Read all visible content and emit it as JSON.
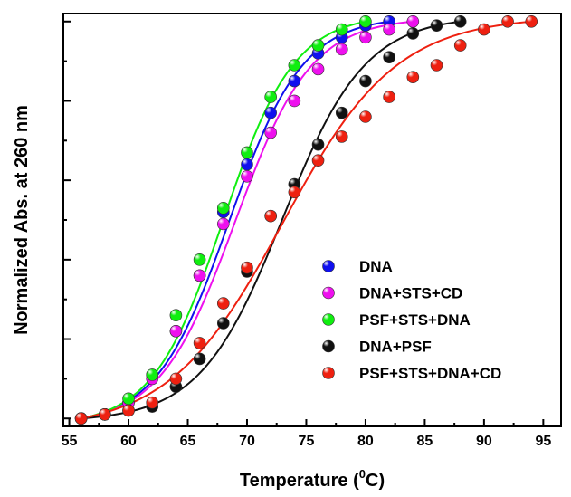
{
  "chart_data": {
    "type": "scatter",
    "title": "",
    "xlabel": "Temperature (",
    "xlabel_sup": "0",
    "xlabel_suffix": "C)",
    "ylabel": "Normalized Abs. at 260 nm",
    "xlim": [
      54.5,
      96.5
    ],
    "ylim": [
      -0.02,
      1.02
    ],
    "xticks": [
      "55",
      "60",
      "65",
      "70",
      "75",
      "80",
      "85",
      "90",
      "95"
    ],
    "yticks_shown_labels": false,
    "grid": false,
    "legend_position": "lower-right",
    "series": [
      {
        "name": "DNA",
        "color": "#1010ee",
        "x": [
          56,
          58,
          60,
          62,
          64,
          66,
          68,
          70,
          72,
          74,
          76,
          78,
          80,
          82
        ],
        "y": [
          0.0,
          0.01,
          0.04,
          0.11,
          0.22,
          0.36,
          0.52,
          0.64,
          0.77,
          0.85,
          0.92,
          0.96,
          0.99,
          1.0
        ],
        "fit": {
          "x0": 68.5,
          "k": 3.1
        }
      },
      {
        "name": "DNA+STS+CD",
        "color": "#ee10ee",
        "x": [
          56,
          58,
          60,
          62,
          64,
          66,
          68,
          70,
          72,
          74,
          76,
          78,
          80,
          82,
          84
        ],
        "y": [
          0.0,
          0.01,
          0.04,
          0.1,
          0.22,
          0.36,
          0.49,
          0.61,
          0.72,
          0.8,
          0.88,
          0.93,
          0.96,
          0.98,
          1.0
        ],
        "fit": {
          "x0": 69.0,
          "k": 3.2
        }
      },
      {
        "name": "PSF+STS+DNA",
        "color": "#10ee10",
        "x": [
          56,
          58,
          60,
          62,
          64,
          66,
          68,
          70,
          72,
          74,
          76,
          78,
          80
        ],
        "y": [
          0.0,
          0.01,
          0.05,
          0.11,
          0.26,
          0.4,
          0.53,
          0.67,
          0.81,
          0.89,
          0.94,
          0.98,
          1.0
        ],
        "fit": {
          "x0": 68.0,
          "k": 3.0
        }
      },
      {
        "name": "DNA+PSF",
        "color": "#111111",
        "x": [
          56,
          58,
          60,
          62,
          64,
          66,
          68,
          70,
          72,
          74,
          76,
          78,
          80,
          82,
          84,
          86,
          88
        ],
        "y": [
          0.0,
          0.01,
          0.02,
          0.03,
          0.08,
          0.15,
          0.24,
          0.37,
          0.51,
          0.59,
          0.69,
          0.77,
          0.85,
          0.91,
          0.97,
          0.99,
          1.0
        ],
        "fit": {
          "x0": 73.0,
          "k": 3.5
        }
      },
      {
        "name": "PSF+STS+DNA+CD",
        "color": "#ee2010",
        "x": [
          56,
          58,
          60,
          62,
          64,
          66,
          68,
          70,
          72,
          74,
          76,
          78,
          80,
          82,
          84,
          86,
          88,
          90,
          92,
          94
        ],
        "y": [
          0.0,
          0.01,
          0.02,
          0.04,
          0.1,
          0.19,
          0.29,
          0.38,
          0.51,
          0.57,
          0.65,
          0.71,
          0.76,
          0.81,
          0.86,
          0.89,
          0.94,
          0.98,
          1.0,
          1.0
        ],
        "fit": {
          "x0": 73.0,
          "k": 4.8
        }
      }
    ]
  }
}
